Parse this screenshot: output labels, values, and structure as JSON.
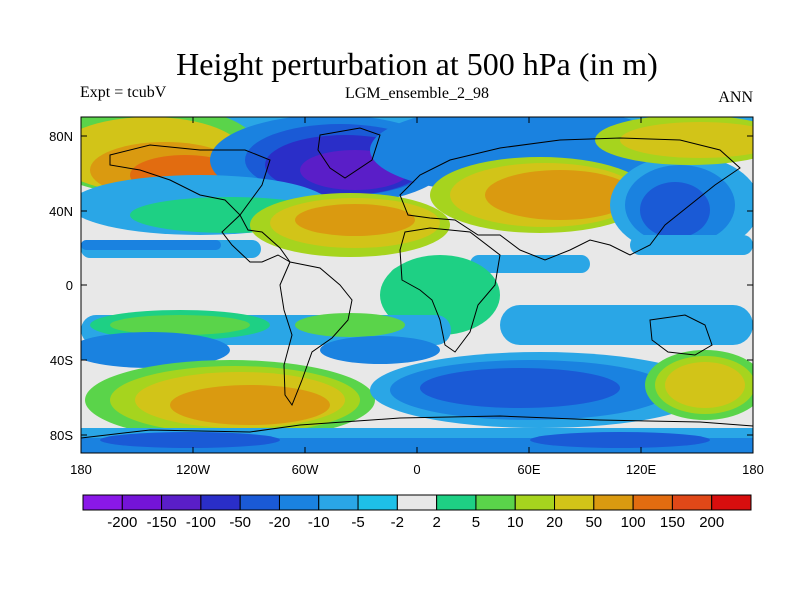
{
  "title": "Height perturbation at 500 hPa (in m)",
  "left_label": "Expt = tcubV",
  "center_label": "LGM_ensemble_2_98",
  "right_label": "ANN",
  "lat_ticks": [
    "80N",
    "40N",
    "0",
    "40S",
    "80S"
  ],
  "lon_ticks": [
    "180",
    "120W",
    "60W",
    "0",
    "60E",
    "120E",
    "180"
  ],
  "colorbar": {
    "colors": [
      "#8a18e8",
      "#7414d8",
      "#5a1ec8",
      "#2a2ec8",
      "#1a5ad6",
      "#1a82e0",
      "#2aa6e6",
      "#1ec0e8",
      "#e8e8e8",
      "#1ed084",
      "#5ad44a",
      "#a6d41e",
      "#d2c418",
      "#da9a10",
      "#e26c10",
      "#e04818",
      "#d80e0e"
    ],
    "labels": [
      "-200",
      "-150",
      "-100",
      "-50",
      "-20",
      "-10",
      "-5",
      "-2",
      "2",
      "5",
      "10",
      "20",
      "50",
      "100",
      "150",
      "200"
    ]
  }
}
